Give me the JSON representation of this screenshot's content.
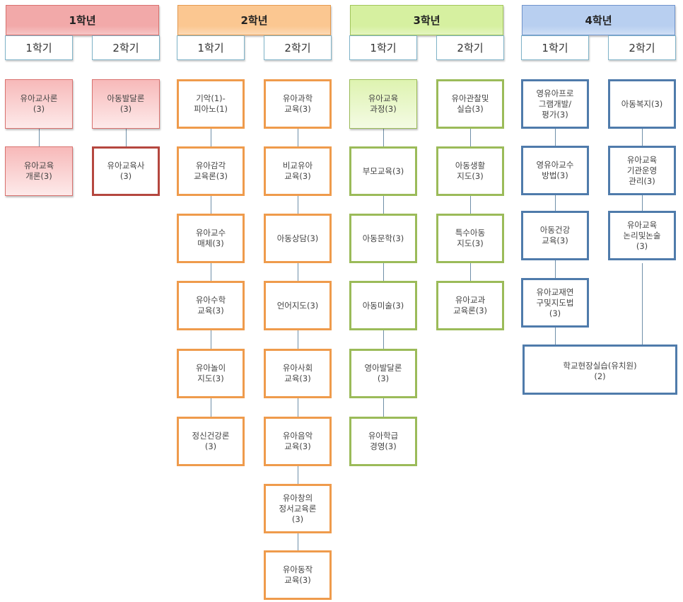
{
  "colors": {
    "year1": {
      "header": "#f2a9a9",
      "header_border": "#d9726f",
      "box_fill": "#f7b9b9",
      "box_border": "#d9726f",
      "outline_border": "#b5473f"
    },
    "year2": {
      "header": "#fbc791",
      "header_border": "#e59a4f",
      "box_border": "#ef9b4c"
    },
    "year3": {
      "header": "#d6f0a0",
      "header_border": "#a2c65a",
      "box_fill": "#def3b0",
      "box_border": "#9bbb59"
    },
    "year4": {
      "header": "#b8cff0",
      "header_border": "#6f94cc",
      "box_border": "#4f7bab"
    },
    "connector": "#6f8fa8"
  },
  "years": [
    {
      "label": "1학년",
      "semesters": [
        {
          "label": "1학기",
          "courses": [
            {
              "name": "유아교사론\n(3)",
              "filled": true
            },
            {
              "name": "유아교육\n개론(3)",
              "filled": true
            }
          ]
        },
        {
          "label": "2학기",
          "courses": [
            {
              "name": "아동발달론\n(3)",
              "filled": true
            },
            {
              "name": "유아교육사\n(3)",
              "filled": false
            }
          ]
        }
      ]
    },
    {
      "label": "2학년",
      "semesters": [
        {
          "label": "1학기",
          "courses": [
            {
              "name": "기악(1)-\n피아노(1)"
            },
            {
              "name": "유아감각\n교육론(3)"
            },
            {
              "name": "유아교수\n매체(3)"
            },
            {
              "name": "유아수학\n교육(3)"
            },
            {
              "name": "유아놀이\n지도(3)"
            },
            {
              "name": "정신건강론\n(3)"
            }
          ]
        },
        {
          "label": "2학기",
          "courses": [
            {
              "name": "유아과학\n교육(3)"
            },
            {
              "name": "비교유아\n교육(3)"
            },
            {
              "name": "아동상담(3)"
            },
            {
              "name": "언어지도(3)"
            },
            {
              "name": "유아사회\n교육(3)"
            },
            {
              "name": "유아음악\n교육(3)"
            },
            {
              "name": "유아창의\n정서교육론\n(3)"
            },
            {
              "name": "유아동작\n교육(3)"
            }
          ]
        }
      ]
    },
    {
      "label": "3학년",
      "semesters": [
        {
          "label": "1학기",
          "courses": [
            {
              "name": "유아교육\n과정(3)",
              "filled": true
            },
            {
              "name": "부모교육(3)"
            },
            {
              "name": "아동문학(3)"
            },
            {
              "name": "아동미술(3)"
            },
            {
              "name": "영아발달론\n(3)"
            },
            {
              "name": "유아학급\n경영(3)"
            }
          ]
        },
        {
          "label": "2학기",
          "courses": [
            {
              "name": "유아관찰및\n실습(3)"
            },
            {
              "name": "아동생활\n지도(3)"
            },
            {
              "name": "특수아동\n지도(3)"
            },
            {
              "name": "유아교과\n교육론(3)"
            }
          ]
        }
      ]
    },
    {
      "label": "4학년",
      "semesters": [
        {
          "label": "1학기",
          "courses": [
            {
              "name": "영유아프로\n그램개발/\n평가(3)"
            },
            {
              "name": "영유아교수\n방법(3)"
            },
            {
              "name": "아동건강\n교육(3)"
            },
            {
              "name": "유아교재연\n구및지도법\n(3)"
            }
          ]
        },
        {
          "label": "2학기",
          "courses": [
            {
              "name": "아동복지(3)"
            },
            {
              "name": "유아교육\n기관운영\n관리(3)"
            },
            {
              "name": "유아교육\n논리및논술\n(3)"
            }
          ]
        }
      ],
      "capstone": "학교현장실습(유치원)\n(2)"
    }
  ]
}
